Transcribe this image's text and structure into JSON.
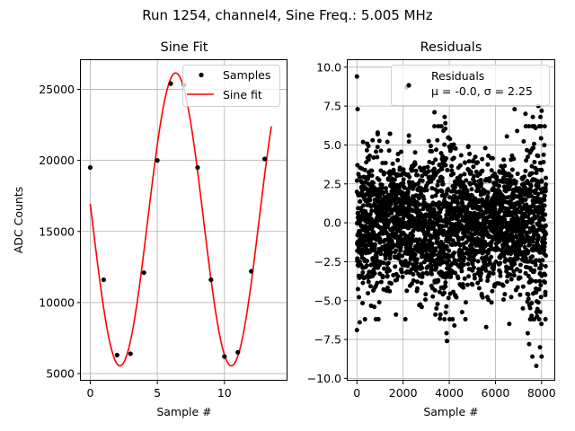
{
  "suptitle": "Run 1254, channel4, Sine Freq.: 5.005 MHz",
  "colors": {
    "samples": "#000000",
    "fit": "#ff0000",
    "grid": "#b0b0b0"
  },
  "chart_data": [
    {
      "type": "scatter+line",
      "title": "Sine Fit",
      "xlabel": "Sample #",
      "ylabel": "ADC Counts",
      "xlim": [
        -0.7,
        14.7
      ],
      "ylim": [
        4500,
        27050
      ],
      "xticks": [
        0,
        5,
        10
      ],
      "yticks": [
        5000,
        10000,
        15000,
        20000,
        25000
      ],
      "grid": true,
      "legend": {
        "location": "upper-right",
        "samples_label": "Samples",
        "fit_label": "Sine fit"
      },
      "samples": {
        "x": [
          0,
          1,
          2,
          3,
          4,
          5,
          6,
          7,
          8,
          9,
          10,
          11,
          12,
          13
        ],
        "y": [
          19500,
          11600,
          6300,
          6400,
          12100,
          20000,
          25400,
          25300,
          19500,
          11600,
          6200,
          6500,
          12200,
          20100
        ]
      },
      "fit": {
        "amplitude": 10300,
        "offset": 15850,
        "period": 8.3,
        "phase_sample": 0.14,
        "x_start": 0,
        "x_end": 13.5
      }
    },
    {
      "type": "scatter",
      "title": "Residuals",
      "xlabel": "Sample #",
      "xlim": [
        -400,
        8590
      ],
      "ylim": [
        -10.15,
        10.45
      ],
      "xticks": [
        0,
        2000,
        4000,
        6000,
        8000
      ],
      "yticks": [
        -10.0,
        -7.5,
        -5.0,
        -2.5,
        0.0,
        2.5,
        5.0,
        7.5,
        10.0
      ],
      "ytick_labels": [
        "−10.0",
        "−7.5",
        "−5.0",
        "−2.5",
        "0.0",
        "2.5",
        "5.0",
        "7.5",
        "10.0"
      ],
      "grid": true,
      "n_points": 8192,
      "mean": -0.0,
      "sigma": 2.25,
      "legend": {
        "location": "upper-right",
        "label": "Residuals",
        "stats_label": "μ = -0.0, σ = 2.25"
      },
      "outliers": [
        {
          "x": 0,
          "y": 9.4
        },
        {
          "x": 30,
          "y": 7.3
        },
        {
          "x": 0,
          "y": -6.9
        },
        {
          "x": 120,
          "y": -6.4
        },
        {
          "x": 680,
          "y": 5.3
        },
        {
          "x": 900,
          "y": 5.8
        },
        {
          "x": 1320,
          "y": 5.2
        },
        {
          "x": 1690,
          "y": -5.9
        },
        {
          "x": 2150,
          "y": 8.7
        },
        {
          "x": 2250,
          "y": 5.6
        },
        {
          "x": 3360,
          "y": 7.1
        },
        {
          "x": 3800,
          "y": 6.8
        },
        {
          "x": 3830,
          "y": 6.4
        },
        {
          "x": 3880,
          "y": -7.1
        },
        {
          "x": 3900,
          "y": -7.6
        },
        {
          "x": 3400,
          "y": -5.9
        },
        {
          "x": 4220,
          "y": -6.6
        },
        {
          "x": 4700,
          "y": -6.2
        },
        {
          "x": 5600,
          "y": -6.7
        },
        {
          "x": 6600,
          "y": -6.5
        },
        {
          "x": 6830,
          "y": 7.3
        },
        {
          "x": 6940,
          "y": 5.9
        },
        {
          "x": 7300,
          "y": 7.0
        },
        {
          "x": 7620,
          "y": 6.8
        },
        {
          "x": 7400,
          "y": -7.1
        },
        {
          "x": 7460,
          "y": -7.8
        },
        {
          "x": 7600,
          "y": -8.6
        },
        {
          "x": 7770,
          "y": -9.2
        },
        {
          "x": 7860,
          "y": 7.5
        },
        {
          "x": 8000,
          "y": 7.2
        },
        {
          "x": 8000,
          "y": -8.6
        },
        {
          "x": 7930,
          "y": -8.0
        },
        {
          "x": 7950,
          "y": 6.8
        },
        {
          "x": 7990,
          "y": -6.5
        }
      ]
    }
  ]
}
